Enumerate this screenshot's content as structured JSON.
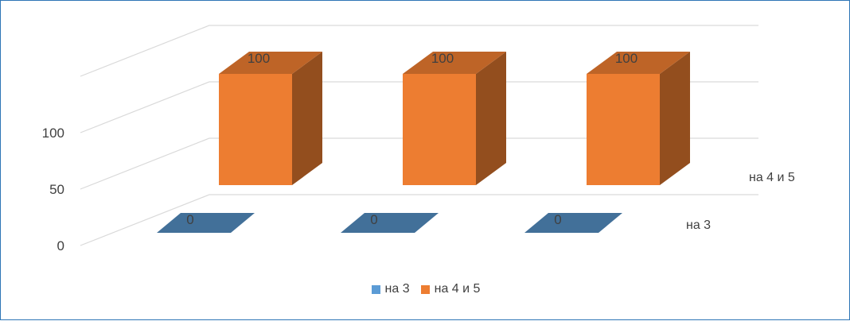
{
  "chart_data": {
    "type": "bar",
    "categories": [
      "",
      "",
      ""
    ],
    "series": [
      {
        "name": "на 3",
        "values": [
          0,
          0,
          0
        ],
        "color": "#5b9bd5"
      },
      {
        "name": "на 4 и 5",
        "values": [
          100,
          100,
          100
        ],
        "color": "#ed7d31"
      }
    ],
    "ylim": [
      0,
      100
    ],
    "yticks": [
      "0",
      "50",
      "100"
    ],
    "grid": true,
    "three_d": true,
    "legend_position": "bottom"
  }
}
